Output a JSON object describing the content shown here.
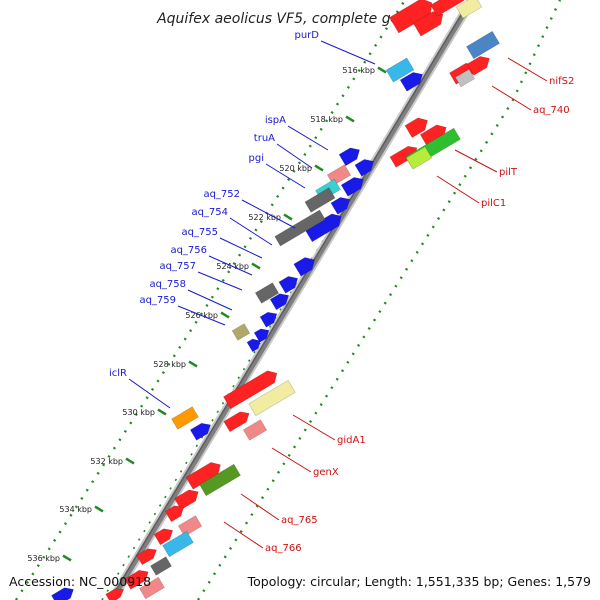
{
  "title": "Aquifex aeolicus VF5, complete genome",
  "footer": {
    "accession": "Accession: NC_000918",
    "summary": "Topology: circular; Length: 1,551,335 bp; Genes: 1,579"
  },
  "colors": {
    "backbone": "#8a8a8a",
    "tick": "#1f8a1f",
    "label_left": "#1a1ad0",
    "label_right": "#cc1111"
  },
  "tick_labels": [
    "516 kbp",
    "518 kbp",
    "520 kbp",
    "522 kbp",
    "524 kbp",
    "526 kbp",
    "528 kbp",
    "530 kbp",
    "532 kbp",
    "534 kbp",
    "536 kbp"
  ],
  "genes_left": [
    "purD",
    "ispA",
    "truA",
    "pgi",
    "aq_752",
    "aq_754",
    "aq_755",
    "aq_756",
    "aq_757",
    "aq_758",
    "aq_759",
    "iclR"
  ],
  "genes_right": [
    "nifS2",
    "aq_740",
    "pilT",
    "pilC1",
    "gidA1",
    "genX",
    "aq_765",
    "aq_766"
  ]
}
